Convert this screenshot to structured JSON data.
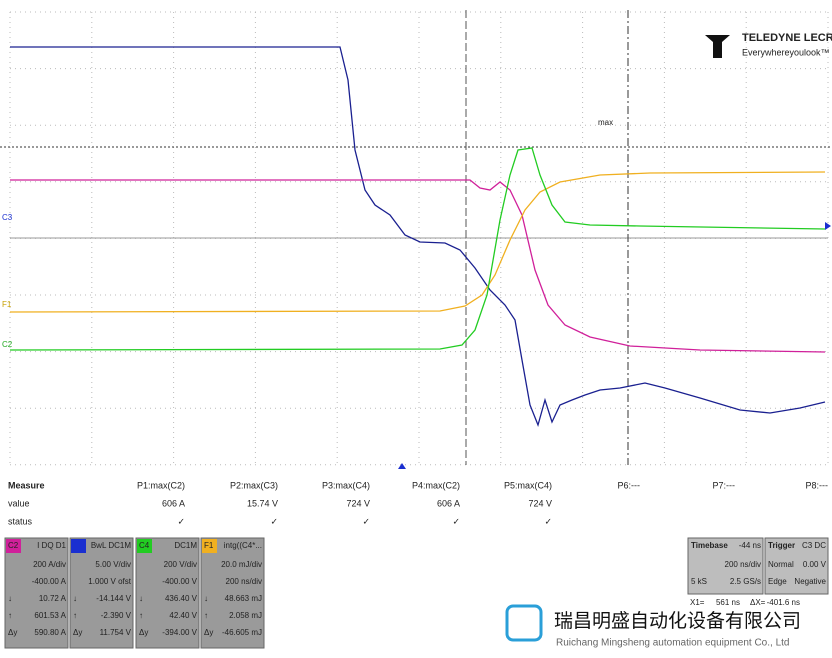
{
  "logo": {
    "brand": "TELEDYNE LECROY",
    "tagline": "Everywhereyoulook™"
  },
  "trace_markers": [
    "C3",
    "F1",
    "C2"
  ],
  "cursor_label": "max",
  "measure": {
    "header": [
      "Measure",
      "P1:max(C2)",
      "P2:max(C3)",
      "P3:max(C4)",
      "P4:max(C2)",
      "P5:max(C4)",
      "P6:---",
      "P7:---",
      "P8:---"
    ],
    "value": [
      "value",
      "606 A",
      "15.74 V",
      "724 V",
      "606 A",
      "724 V"
    ],
    "status": [
      "status",
      "✓",
      "✓",
      "✓",
      "✓",
      "✓"
    ]
  },
  "channels": [
    {
      "label": "C2",
      "color": "#d0209a",
      "header": "I DQ D1",
      "rows": [
        [
          "200 A/div"
        ],
        [
          "-400.00 A"
        ],
        [
          "↓",
          "10.72 A"
        ],
        [
          "↑",
          "601.53 A"
        ],
        [
          "Δy",
          "590.80 A"
        ]
      ]
    },
    {
      "color": "#1a2fd0",
      "header": "BwL DC1M",
      "rows": [
        [
          "5.00 V/div"
        ],
        [
          "1.000 V ofst"
        ],
        [
          "↓",
          "-14.144 V"
        ],
        [
          "↑",
          "-2.390 V"
        ],
        [
          "Δy",
          "11.754 V"
        ]
      ]
    },
    {
      "label": "C4",
      "color": "#22cc22",
      "header": "DC1M",
      "rows": [
        [
          "200 V/div"
        ],
        [
          "-400.00 V"
        ],
        [
          "↓",
          "436.40 V"
        ],
        [
          "↑",
          "42.40 V"
        ],
        [
          "Δy",
          "-394.00 V"
        ]
      ]
    },
    {
      "label": "F1",
      "color": "#f0b020",
      "header": "intg((C4*...",
      "rows": [
        [
          "20.0 mJ/div"
        ],
        [
          "200 ns/div"
        ],
        [
          "↓",
          "48.663 mJ"
        ],
        [
          "↑",
          "2.058 mJ"
        ],
        [
          "Δy",
          "-46.605 mJ"
        ]
      ]
    }
  ],
  "timebase": {
    "title": "Timebase",
    "offset": "-44 ns",
    "rows": [
      [
        "200 ns/div"
      ],
      [
        "5 kS",
        "2.5 GS/s"
      ]
    ]
  },
  "trigger": {
    "title": "Trigger",
    "source": "C3 DC",
    "rows": [
      [
        "Normal",
        "0.00 V"
      ],
      [
        "Edge",
        "Negative"
      ]
    ]
  },
  "cursors": [
    "X1=",
    "561 ns",
    "ΔX=",
    "-401.6 ns"
  ],
  "watermark": {
    "name": "瑞昌明盛自动化设备有限公司",
    "english": "Ruichang Mingsheng automation equipment Co., Ltd"
  }
}
